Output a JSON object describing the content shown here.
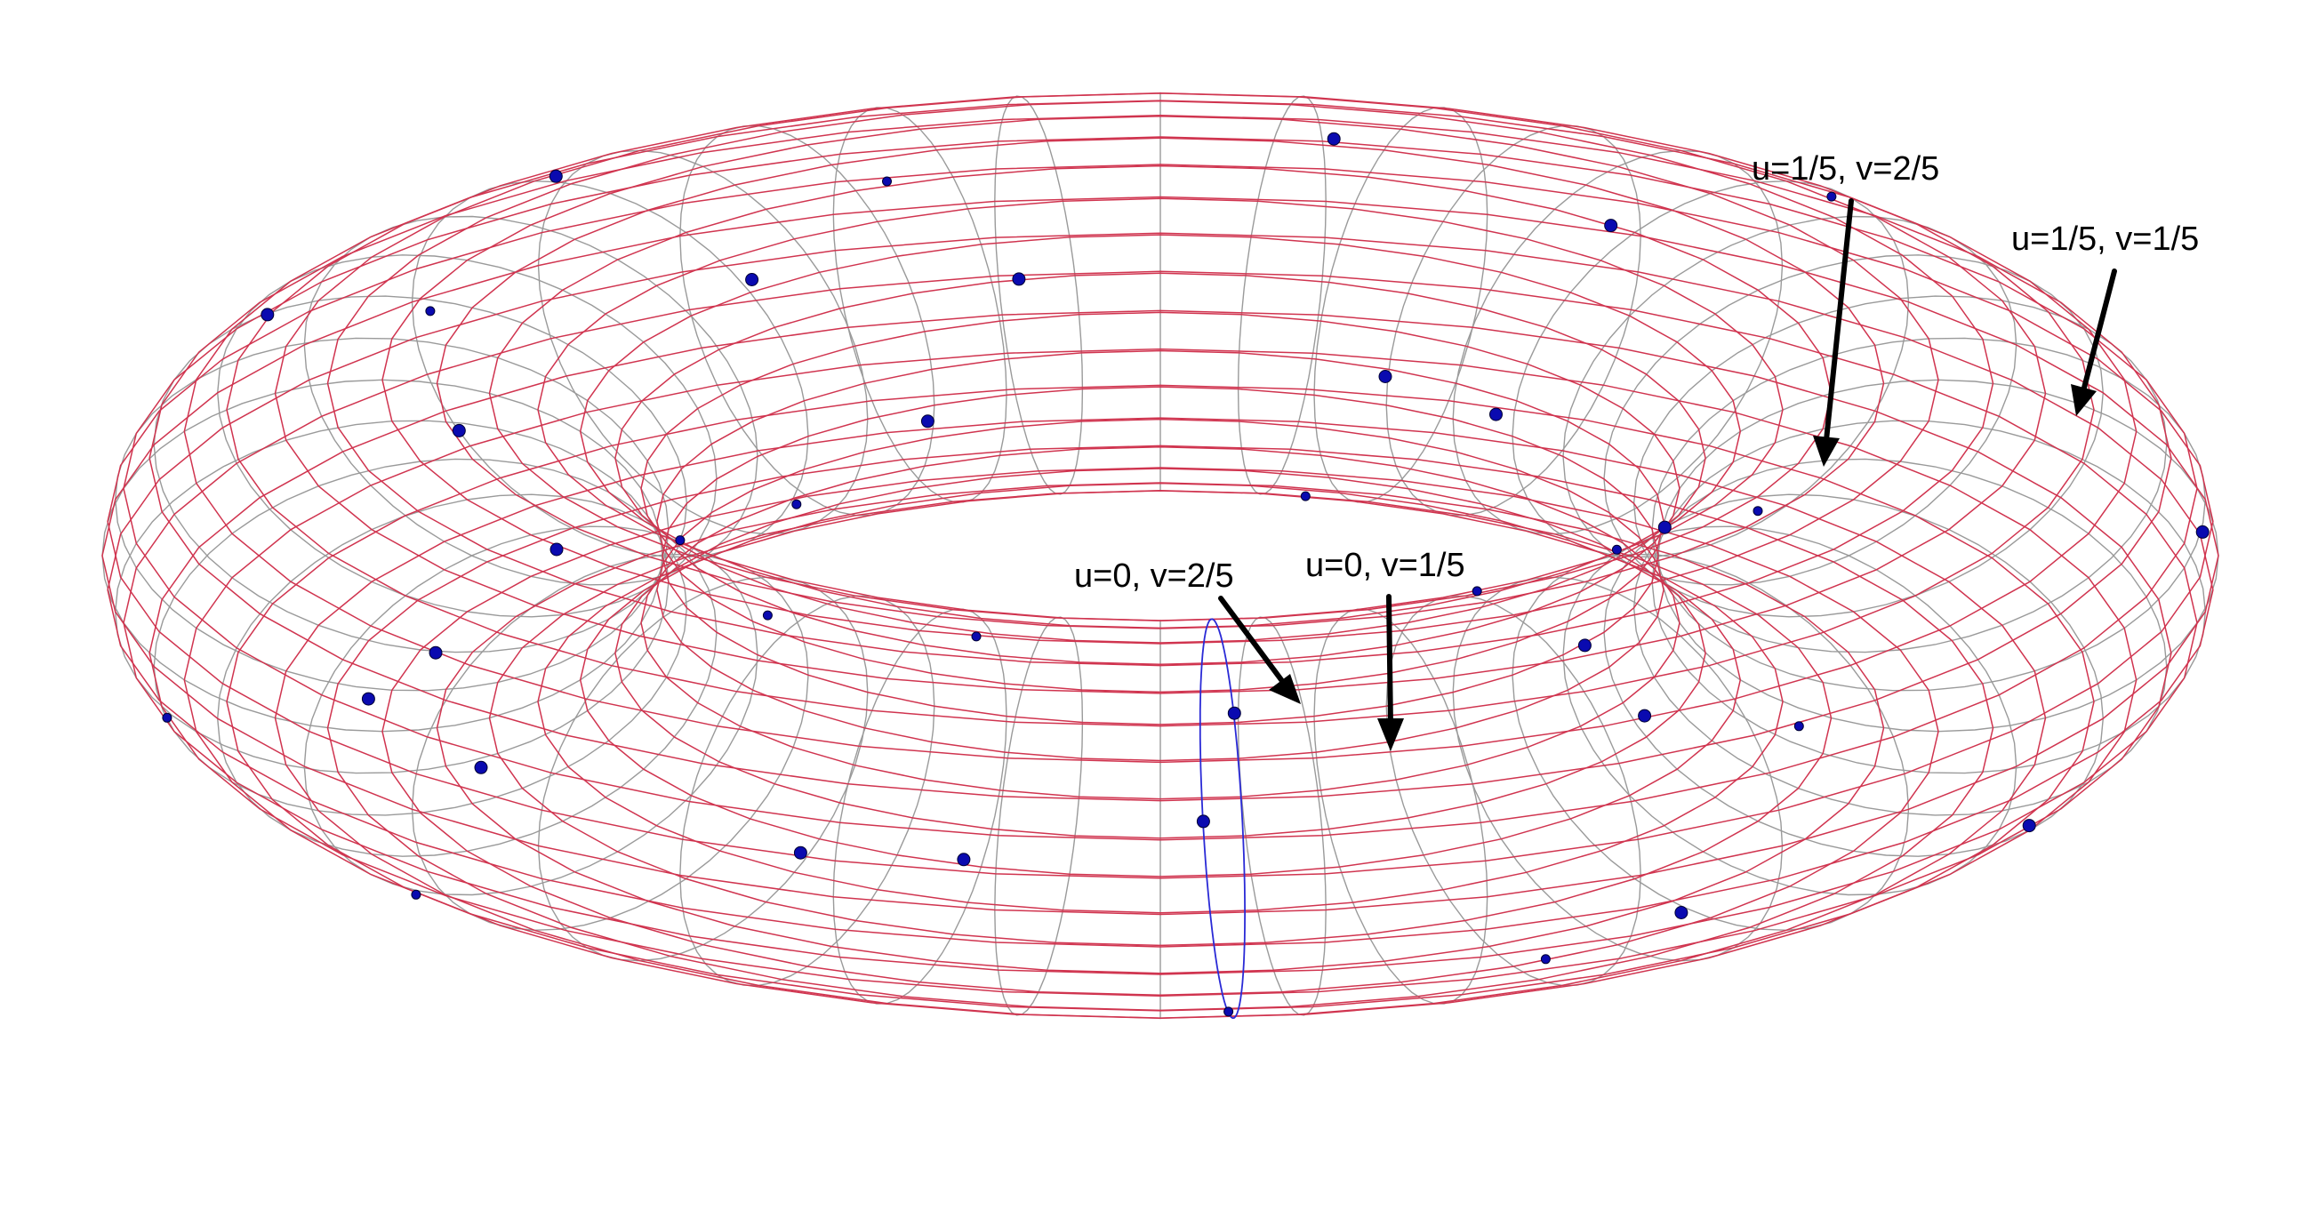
{
  "figure": {
    "colors": {
      "background": "#ffffff",
      "toroidal_mesh": "#d0344f",
      "poloidal_mesh": "#9a9a9a",
      "highlight_curve": "#2a2ad6",
      "sample_point": "#0a0ab0",
      "arrow": "#000000"
    },
    "mesh": {
      "toroidal_lines": 32,
      "poloidal_lines": 40,
      "major_radius": 1.0,
      "minor_radius": 0.36
    },
    "annotations": [
      {
        "label": "u=0, v=2/5"
      },
      {
        "label": "u=0, v=1/5"
      },
      {
        "label": "u=1/5, v=2/5"
      },
      {
        "label": "u=1/5, v=1/5"
      }
    ]
  }
}
